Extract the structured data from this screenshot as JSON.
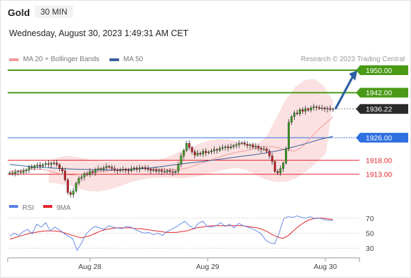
{
  "header": {
    "instrument": "Gold",
    "timeframe": "30 MIN",
    "datetime": "Wednesday, August 30, 2023 1:49:31 AM CET"
  },
  "legend": {
    "ma20_label": "MA 20 + Bollinger Bands",
    "ma50_label": "MA 50",
    "research": "Research © 2023 Trading Central"
  },
  "colors": {
    "ma20": "#f29a9a",
    "ma50": "#3a5f9e",
    "resistance": "#4a9a16",
    "pivot": "#2f6fe0",
    "support": "#e0242a",
    "rsi": "#5a7fe6",
    "rsi_ma": "#e0242a",
    "arrow": "#2d5fa3",
    "candle_up": "#3a9e1f",
    "candle_down": "#c8202a"
  },
  "chart_data": [
    {
      "type": "candlestick",
      "x_ticks": [
        "Aug 28",
        "Aug 29",
        "Aug 30"
      ],
      "ylim": [
        1906,
        1951
      ],
      "levels": [
        {
          "value": 1950.0,
          "label": "1950.00",
          "kind": "resistance"
        },
        {
          "value": 1942.0,
          "label": "1942.00",
          "kind": "resistance"
        },
        {
          "value": 1936.22,
          "label": "1936.22",
          "kind": "last"
        },
        {
          "value": 1926.0,
          "label": "1926.00",
          "kind": "pivot"
        },
        {
          "value": 1918.0,
          "label": "1918.00",
          "kind": "support"
        },
        {
          "value": 1913.0,
          "label": "1913.00",
          "kind": "support"
        }
      ],
      "close": [
        1913.5,
        1913.2,
        1913.8,
        1914.0,
        1913.6,
        1914.2,
        1914.6,
        1915.5,
        1915.2,
        1916.0,
        1916.3,
        1915.8,
        1916.4,
        1916.8,
        1916.5,
        1916.9,
        1917.0,
        1916.4,
        1915.0,
        1914.2,
        1911.0,
        1906.5,
        1905.8,
        1907.0,
        1909.8,
        1911.5,
        1912.0,
        1913.2,
        1912.8,
        1914.0,
        1913.6,
        1914.5,
        1915.0,
        1914.8,
        1915.3,
        1915.8,
        1915.5,
        1915.0,
        1914.6,
        1914.2,
        1914.5,
        1914.8,
        1914.4,
        1914.2,
        1914.9,
        1915.2,
        1914.8,
        1915.3,
        1915.4,
        1915.0,
        1914.8,
        1914.3,
        1914.6,
        1914.1,
        1914.5,
        1914.0,
        1913.8,
        1914.3,
        1913.9,
        1913.6,
        1914.0,
        1916.5,
        1919.5,
        1921.5,
        1924.0,
        1922.5,
        1921.0,
        1919.8,
        1920.5,
        1920.2,
        1921.2,
        1920.6,
        1920.9,
        1921.3,
        1921.8,
        1921.5,
        1922.2,
        1922.5,
        1922.8,
        1922.4,
        1922.8,
        1923.2,
        1923.5,
        1924.0,
        1924.2,
        1923.7,
        1923.2,
        1923.5,
        1922.6,
        1923.0,
        1922.2,
        1921.8,
        1922.0,
        1921.2,
        1919.5,
        1917.5,
        1914.0,
        1913.5,
        1915.0,
        1917.0,
        1922.0,
        1931.5,
        1933.5,
        1934.8,
        1934.5,
        1936.0,
        1935.4,
        1936.3,
        1935.8,
        1936.6,
        1937.0,
        1936.8,
        1936.4,
        1936.6,
        1936.2,
        1936.4,
        1936.0,
        1936.22
      ],
      "ma20": [
        1914.0,
        1914.2,
        1914.4,
        1914.6,
        1914.8,
        1914.8,
        1914.3,
        1913.7,
        1913.1,
        1912.8,
        1912.7,
        1912.9,
        1913.2,
        1913.5,
        1913.8,
        1914.0,
        1914.3,
        1914.6,
        1914.8,
        1914.9,
        1915.0,
        1915.0,
        1914.9,
        1914.8,
        1914.8,
        1914.7,
        1914.6,
        1914.8,
        1915.2,
        1916.0,
        1916.8,
        1917.5,
        1918.3,
        1919.0,
        1919.8,
        1920.4,
        1920.9,
        1921.3,
        1921.8,
        1922.2,
        1922.6,
        1922.9,
        1922.6,
        1922.0,
        1921.5,
        1921.2,
        1922.5,
        1924.8,
        1927.2,
        1929.5,
        1931.5,
        1933.5
      ],
      "ma50": [
        1916.5,
        1916.0,
        1915.6,
        1915.3,
        1915.0,
        1914.8,
        1914.7,
        1914.6,
        1914.5,
        1914.6,
        1914.9,
        1915.3,
        1915.9,
        1916.5,
        1917.1,
        1917.6,
        1918.2,
        1918.8,
        1919.4,
        1920.0,
        1920.7,
        1921.6,
        1922.8,
        1924.0,
        1925.4,
        1926.5
      ],
      "bb_upper": [
        1917.5,
        1919.0,
        1919.6,
        1919.2,
        1918.4,
        1917.9,
        1917.7,
        1917.8,
        1917.8,
        1917.9,
        1918.0,
        1917.9,
        1918.5,
        1919.8,
        1921.2,
        1922.6,
        1924.0,
        1925.0,
        1925.6,
        1925.5,
        1924.6,
        1923.8,
        1923.9,
        1926.5,
        1933.0,
        1939.5,
        1944.0,
        1946.5,
        1947.0,
        1944.5,
        1939.0
      ],
      "bb_lower": [
        1910.0,
        1909.6,
        1909.0,
        1907.8,
        1907.0,
        1906.8,
        1907.5,
        1908.5,
        1909.8,
        1910.8,
        1911.5,
        1911.8,
        1911.8,
        1911.6,
        1911.7,
        1912.2,
        1913.0,
        1914.0,
        1914.8,
        1915.2,
        1914.4,
        1912.6,
        1911.0,
        1910.2,
        1910.4,
        1911.6,
        1914.0,
        1917.0,
        1920.5
      ],
      "projection": {
        "from": 1936.22,
        "to": 1950.0
      }
    },
    {
      "type": "line",
      "legend": [
        "RSI",
        "9MA"
      ],
      "ylim": [
        20,
        80
      ],
      "yticks": [
        70,
        50,
        30
      ],
      "x_ticks": [
        "Aug 28",
        "Aug 29",
        "Aug 30"
      ],
      "series": [
        {
          "name": "RSI",
          "values": [
            46,
            50,
            47,
            52,
            55,
            49,
            62,
            58,
            64,
            53,
            58,
            55,
            50,
            46,
            43,
            27,
            37,
            49,
            55,
            59,
            57,
            55,
            60,
            58,
            57,
            56,
            59,
            58,
            55,
            52,
            50,
            51,
            48,
            50,
            47,
            52,
            55,
            58,
            62,
            66,
            60,
            56,
            63,
            66,
            59,
            58,
            60,
            64,
            59,
            62,
            57,
            63,
            60,
            58,
            56,
            53,
            49,
            41,
            37,
            36,
            50,
            69,
            72,
            71,
            73,
            71,
            70,
            72,
            69,
            70,
            68,
            67,
            67
          ]
        },
        {
          "name": "9MA",
          "values": [
            42,
            44,
            46,
            48,
            50,
            51,
            52,
            53,
            53,
            53,
            52,
            50,
            48,
            46,
            44,
            45,
            47,
            50,
            53,
            55,
            56,
            57,
            57,
            57,
            57,
            56,
            56,
            55,
            54,
            53,
            52,
            51,
            51,
            51,
            52,
            53,
            55,
            57,
            58,
            59,
            60,
            60,
            60,
            60,
            60,
            60,
            60,
            59,
            58,
            57,
            55,
            52,
            48,
            45,
            43,
            46,
            52,
            58,
            63,
            67,
            69,
            70,
            70,
            69,
            68
          ]
        }
      ]
    }
  ]
}
